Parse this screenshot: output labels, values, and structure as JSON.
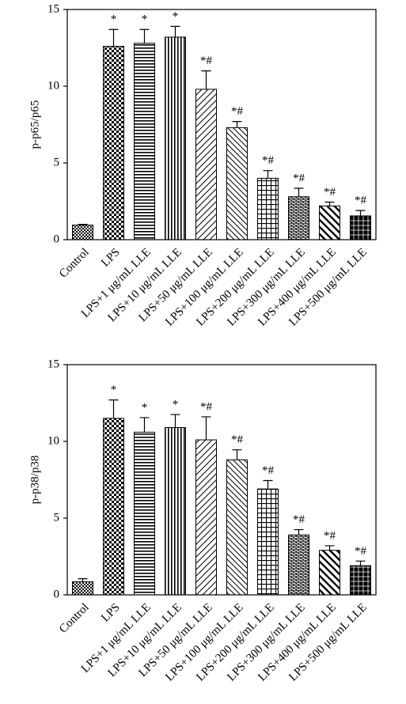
{
  "chart_data": [
    {
      "type": "bar",
      "y_label": "p-p65/p65",
      "categories": [
        "Control",
        "LPS",
        "LPS+1 μg/mL LLE",
        "LPS+10 μg/mL LLE",
        "LPS+50 μg/mL LLE",
        "LPS+100 μg/mL LLE",
        "LPS+200 μg/mL LLE",
        "LPS+300 μg/mL LLE",
        "LPS+400 μg/mL LLE",
        "LPS+500 μg/mL LLE"
      ],
      "values": [
        0.95,
        12.6,
        12.8,
        13.2,
        9.8,
        7.3,
        4.0,
        2.8,
        2.2,
        1.55
      ],
      "errors": [
        0.05,
        1.1,
        0.9,
        0.7,
        1.2,
        0.4,
        0.5,
        0.55,
        0.25,
        0.35
      ],
      "annotations": [
        null,
        "*",
        "*",
        "*",
        "*#",
        "*#",
        "*#",
        "*#",
        "*#",
        "*#"
      ],
      "ylim": [
        0,
        15
      ],
      "yticks": [
        0,
        5,
        10,
        15
      ]
    },
    {
      "type": "bar",
      "y_label": "p-p38/p38",
      "categories": [
        "Control",
        "LPS",
        "LPS+1 μg/mL LLE",
        "LPS+10 μg/mL LLE",
        "LPS+50 μg/mL LLE",
        "LPS+100 μg/mL LLE",
        "LPS+200 μg/mL LLE",
        "LPS+300 μg/mL LLE",
        "LPS+400 μg/mL LLE",
        "LPS+500 μg/mL LLE"
      ],
      "values": [
        0.85,
        11.5,
        10.6,
        10.9,
        10.1,
        8.8,
        6.9,
        3.9,
        2.9,
        1.9
      ],
      "errors": [
        0.2,
        1.2,
        0.95,
        0.85,
        1.5,
        0.65,
        0.55,
        0.35,
        0.3,
        0.3
      ],
      "annotations": [
        null,
        "*",
        "*",
        "*",
        "*#",
        "*#",
        "*#",
        "*#",
        "*#",
        "*#"
      ],
      "ylim": [
        0,
        15
      ],
      "yticks": [
        0,
        5,
        10,
        15
      ]
    }
  ]
}
